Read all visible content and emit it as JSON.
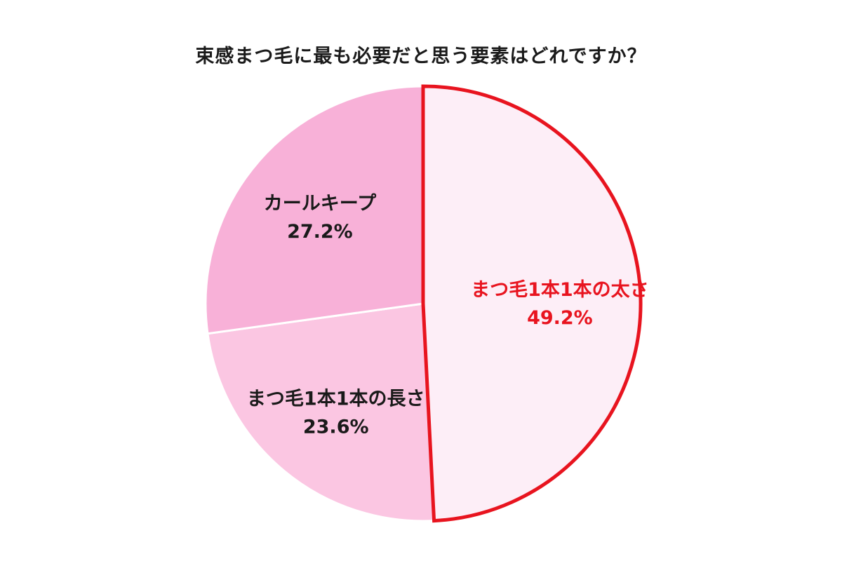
{
  "chart_data": {
    "type": "pie",
    "title": "束感まつ毛に最も必要だと思う要素はどれですか？",
    "slices": [
      {
        "label": "まつ毛1本1本の太さ",
        "value": 49.2,
        "value_label": "49.2%",
        "color": "#fdeef7",
        "text_color": "#e8141f",
        "highlight": true,
        "highlight_color": "#e8141f"
      },
      {
        "label": "まつ毛1本1本の長さ",
        "value": 23.6,
        "value_label": "23.6%",
        "color": "#fbc6e2",
        "text_color": "#1a1a1a",
        "highlight": false
      },
      {
        "label": "カールキープ",
        "value": 27.2,
        "value_label": "27.2%",
        "color": "#f8b1d8",
        "text_color": "#1a1a1a",
        "highlight": false
      }
    ],
    "start_angle": "12 o'clock",
    "direction": "clockwise",
    "legend": "none"
  }
}
